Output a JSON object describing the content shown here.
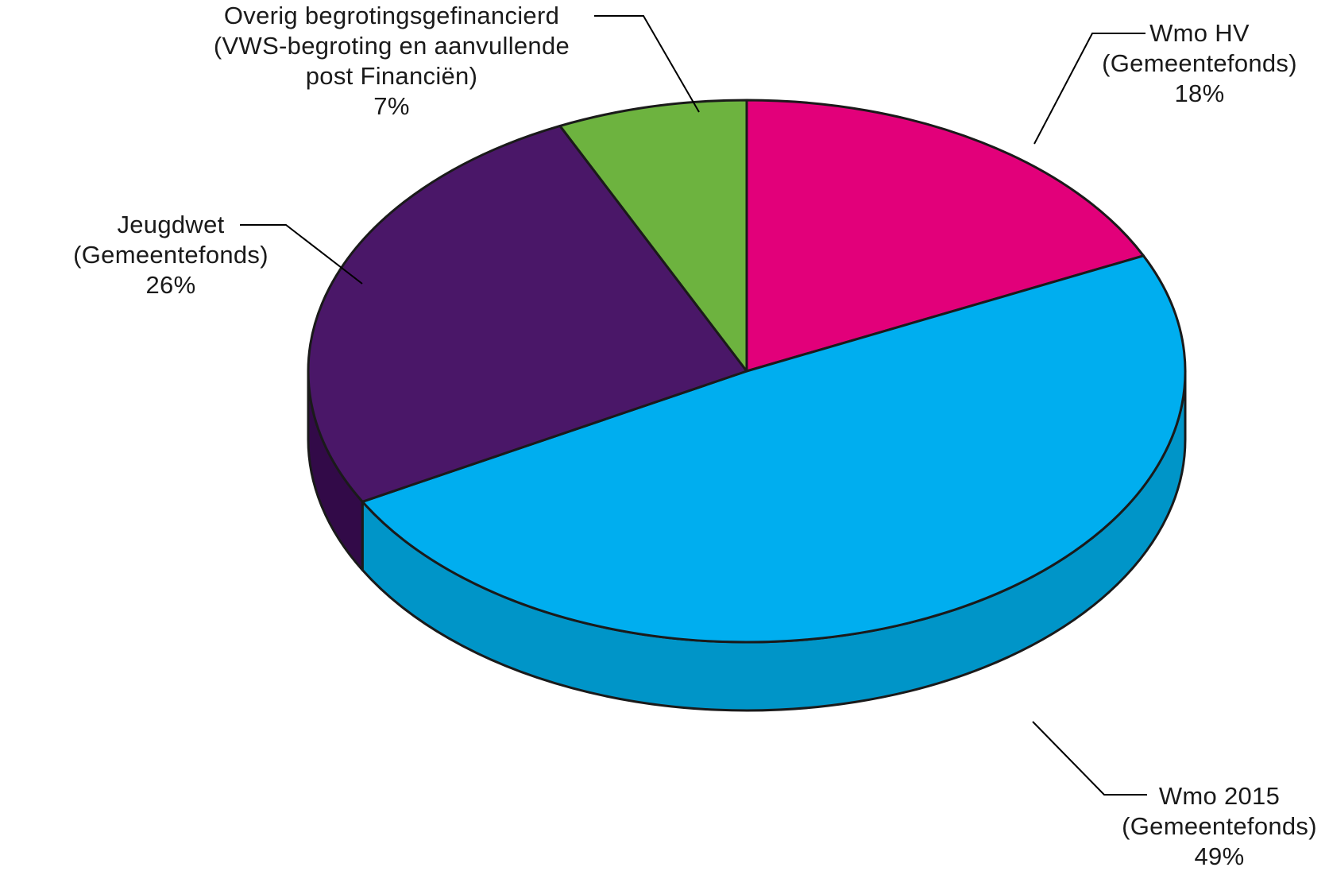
{
  "chart_data": {
    "type": "pie",
    "title": "",
    "slices": [
      {
        "key": "wmo_hv",
        "lines": [
          "Wmo HV",
          "(Gemeentefonds)",
          "18%"
        ],
        "value": 18,
        "color": "#e2007a",
        "side_color": "#b0005f"
      },
      {
        "key": "wmo_2015",
        "lines": [
          "Wmo 2015",
          "(Gemeentefonds)",
          "49%"
        ],
        "value": 49,
        "color": "#00aeef",
        "side_color": "#0095c8"
      },
      {
        "key": "jeugdwet",
        "lines": [
          "Jeugdwet",
          "(Gemeentefonds)",
          "26%"
        ],
        "value": 26,
        "color": "#4a1768",
        "side_color": "#320a48"
      },
      {
        "key": "overig",
        "lines": [
          "Overig begrotingsgefinancierd",
          "(VWS-begroting en aanvullende",
          "post Financiën)",
          "7%"
        ],
        "value": 7,
        "color": "#6db33f",
        "side_color": "#4f8a2b"
      }
    ]
  }
}
